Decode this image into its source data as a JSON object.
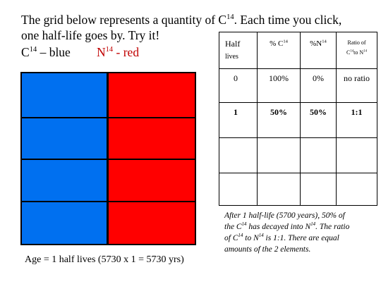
{
  "title": {
    "line1": [
      "The grid below represents a quantity of C",
      "14",
      ". Each time you click,"
    ],
    "line2": "one half-life goes by. Try it!",
    "legend": {
      "blue": [
        "C",
        "14",
        " – blue"
      ],
      "red": [
        "N",
        "14",
        " - red"
      ]
    }
  },
  "grid_caption": "Age = 1 half lives (5730 x 1 = 5730 yrs)",
  "table": {
    "header": [
      [
        "Half",
        "lives"
      ],
      [
        "% C",
        "14"
      ],
      [
        "%N",
        "14"
      ],
      [
        "Ratio of",
        "C",
        "14",
        "to N",
        "14"
      ]
    ],
    "rows": [
      [
        "0",
        "100%",
        "0%",
        "no ratio"
      ],
      [
        "1",
        "50%",
        "50%",
        "1:1"
      ]
    ]
  },
  "note": [
    [
      "After 1 half-life (5700 years), 50% of"
    ],
    [
      "the C",
      "14",
      " has decayed into N",
      "14",
      ". The ratio"
    ],
    [
      "of C",
      "14",
      " to N",
      "14",
      " is 1:1. There are equal"
    ],
    [
      "amounts of the 2 elements."
    ]
  ]
}
